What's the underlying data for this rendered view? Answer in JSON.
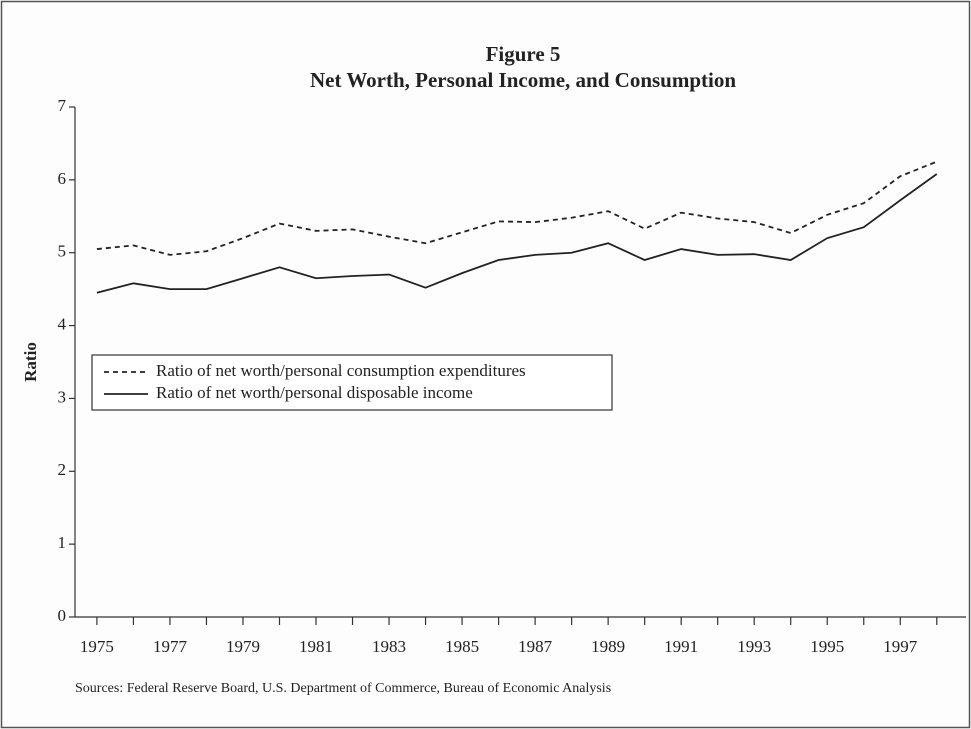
{
  "chart_data": {
    "type": "line",
    "title": "Figure 5",
    "subtitle": "Net Worth, Personal Income, and Consumption",
    "ylabel": "Ratio",
    "source": "Sources: Federal Reserve Board, U.S. Department of Commerce, Bureau of Economic Analysis",
    "x": [
      1975,
      1976,
      1977,
      1978,
      1979,
      1980,
      1981,
      1982,
      1983,
      1984,
      1985,
      1986,
      1987,
      1988,
      1989,
      1990,
      1991,
      1992,
      1993,
      1994,
      1995,
      1996,
      1997,
      1998
    ],
    "series": [
      {
        "name": "Ratio of net worth/personal consumption expenditures",
        "color": "#222222",
        "dash": "dashed",
        "values": [
          5.05,
          5.1,
          4.97,
          5.02,
          5.2,
          5.4,
          5.3,
          5.32,
          5.22,
          5.13,
          5.28,
          5.43,
          5.42,
          5.48,
          5.57,
          5.33,
          5.55,
          5.47,
          5.42,
          5.27,
          5.52,
          5.68,
          6.05,
          6.25
        ]
      },
      {
        "name": "Ratio of net worth/personal disposable income",
        "color": "#222222",
        "dash": "solid",
        "values": [
          4.45,
          4.58,
          4.5,
          4.5,
          4.65,
          4.8,
          4.65,
          4.68,
          4.7,
          4.52,
          4.72,
          4.9,
          4.97,
          5.0,
          5.13,
          4.9,
          5.05,
          4.97,
          4.98,
          4.9,
          5.2,
          5.35,
          5.72,
          6.08
        ]
      }
    ],
    "xlim": [
      1974.4,
      1998.8
    ],
    "xticks": [
      1975,
      1977,
      1979,
      1981,
      1983,
      1985,
      1987,
      1989,
      1991,
      1993,
      1995,
      1997
    ],
    "xminorticks": [
      1976,
      1978,
      1980,
      1982,
      1984,
      1986,
      1988,
      1990,
      1992,
      1994,
      1996,
      1998
    ],
    "ylim": [
      0,
      7
    ],
    "yticks": [
      0,
      1,
      2,
      3,
      4,
      5,
      6,
      7
    ],
    "grid": false,
    "legend": "left"
  }
}
